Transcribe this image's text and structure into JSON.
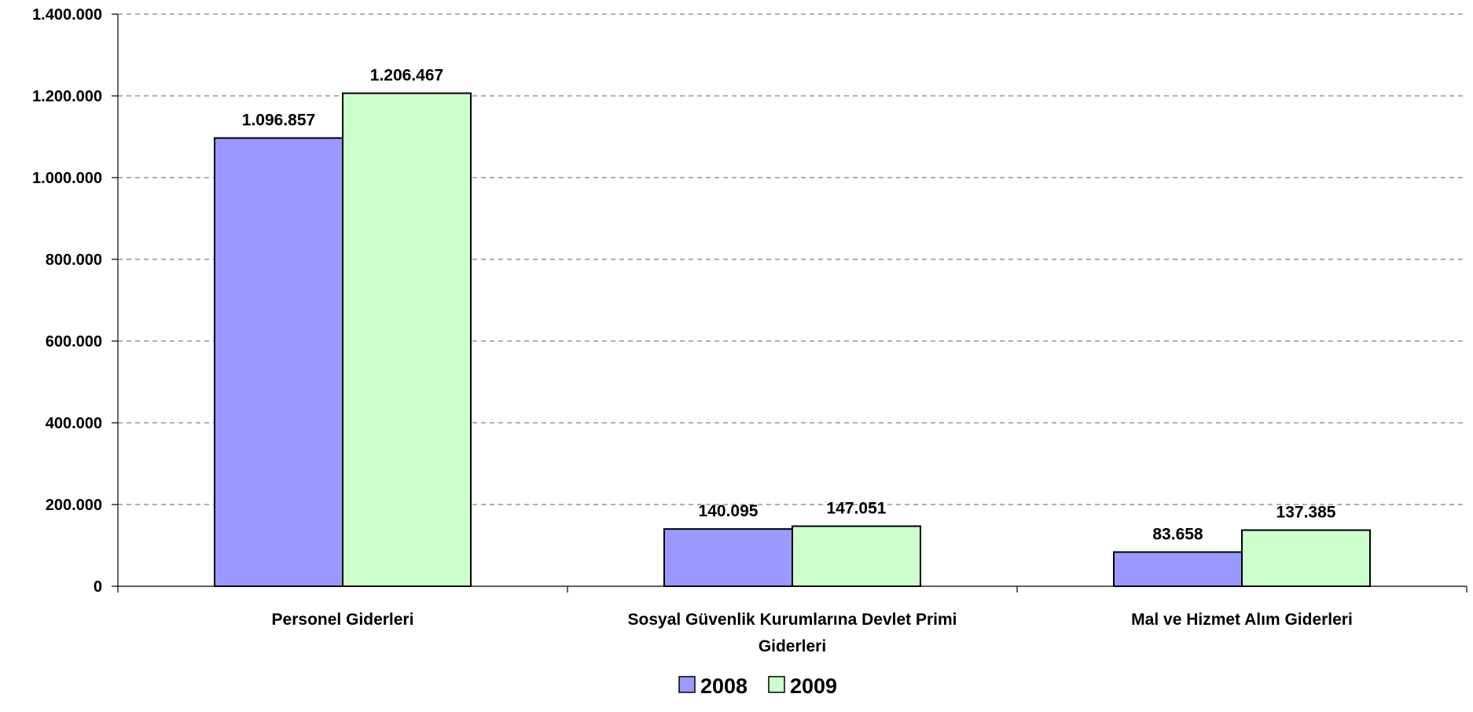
{
  "chart_data": {
    "type": "bar",
    "title": "",
    "xlabel": "",
    "ylabel": "",
    "ylim": [
      0,
      1400000
    ],
    "yticks": [
      0,
      200000,
      400000,
      600000,
      800000,
      1000000,
      1200000,
      1400000
    ],
    "ytick_labels": [
      "0",
      "200.000",
      "400.000",
      "600.000",
      "800.000",
      "1.000.000",
      "1.200.000",
      "1.400.000"
    ],
    "grid": true,
    "legend_position": "bottom",
    "categories": [
      [
        "Personel Giderleri"
      ],
      [
        "Sosyal Güvenlik Kurumlarına Devlet Primi",
        "Giderleri"
      ],
      [
        "Mal ve Hizmet Alım Giderleri"
      ]
    ],
    "series": [
      {
        "name": "2008",
        "color": "#9999ff",
        "values": [
          1096857,
          140095,
          83658
        ],
        "labels": [
          "1.096.857",
          "140.095",
          "83.658"
        ]
      },
      {
        "name": "2009",
        "color": "#ccffcc",
        "values": [
          1206467,
          147051,
          137385
        ],
        "labels": [
          "1.206.467",
          "147.051",
          "137.385"
        ]
      }
    ]
  }
}
